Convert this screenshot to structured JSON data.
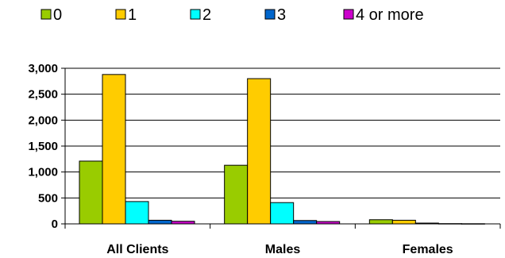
{
  "chart_data": {
    "type": "bar",
    "categories": [
      "All Clients",
      "Males",
      "Females"
    ],
    "series": [
      {
        "name": "0",
        "color": "#99CC00",
        "values": [
          1210,
          1130,
          80
        ]
      },
      {
        "name": "1",
        "color": "#FFCC00",
        "values": [
          2880,
          2800,
          70
        ]
      },
      {
        "name": "2",
        "color": "#00FFFF",
        "values": [
          430,
          410,
          15
        ]
      },
      {
        "name": "3",
        "color": "#0066CC",
        "values": [
          70,
          65,
          5
        ]
      },
      {
        "name": "4 or more",
        "color": "#CC00CC",
        "values": [
          50,
          45,
          3
        ]
      }
    ],
    "yticks": [
      "0",
      "500",
      "1,000",
      "1,500",
      "2,000",
      "2,500",
      "3,000"
    ],
    "ytick_values": [
      0,
      500,
      1000,
      1500,
      2000,
      2500,
      3000
    ],
    "ylim": [
      0,
      3000
    ],
    "grid": true,
    "legend_position": "top"
  }
}
